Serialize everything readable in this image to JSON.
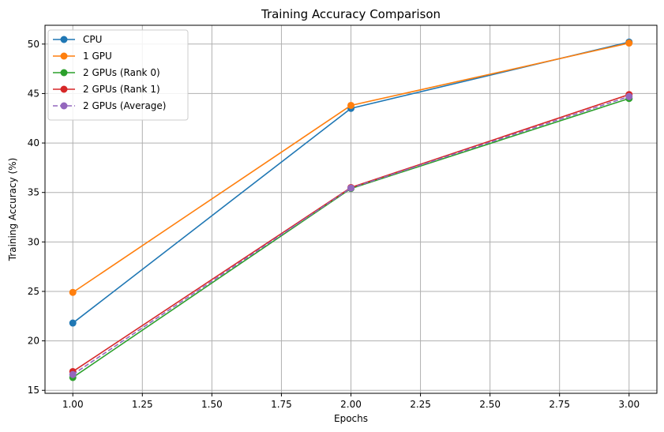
{
  "chart_data": {
    "type": "line",
    "title": "Training Accuracy Comparison",
    "xlabel": "Epochs",
    "ylabel": "Training Accuracy (%)",
    "x": [
      1.0,
      2.0,
      3.0
    ],
    "xlim": [
      0.9,
      3.1
    ],
    "ylim": [
      14.7,
      51.9
    ],
    "xticks": [
      1.0,
      1.25,
      1.5,
      1.75,
      2.0,
      2.25,
      2.5,
      2.75,
      3.0
    ],
    "xtick_labels": [
      "1.00",
      "1.25",
      "1.50",
      "1.75",
      "2.00",
      "2.25",
      "2.50",
      "2.75",
      "3.00"
    ],
    "yticks": [
      15,
      20,
      25,
      30,
      35,
      40,
      45,
      50
    ],
    "ytick_labels": [
      "15",
      "20",
      "25",
      "30",
      "35",
      "40",
      "45",
      "50"
    ],
    "grid": true,
    "legend_position": "top-left",
    "series": [
      {
        "name": "CPU",
        "values": [
          21.8,
          43.5,
          50.2
        ],
        "color": "#1f77b4",
        "dash": "solid",
        "marker": "circle"
      },
      {
        "name": "1 GPU",
        "values": [
          24.9,
          43.8,
          50.1
        ],
        "color": "#ff7f0e",
        "dash": "solid",
        "marker": "circle"
      },
      {
        "name": "2 GPUs (Rank 0)",
        "values": [
          16.3,
          35.4,
          44.5
        ],
        "color": "#2ca02c",
        "dash": "solid",
        "marker": "circle"
      },
      {
        "name": "2 GPUs (Rank 1)",
        "values": [
          16.9,
          35.5,
          44.9
        ],
        "color": "#d62728",
        "dash": "solid",
        "marker": "circle"
      },
      {
        "name": "2 GPUs (Average)",
        "values": [
          16.6,
          35.45,
          44.7
        ],
        "color": "#9467bd",
        "dash": "dashed",
        "marker": "circle"
      }
    ]
  }
}
